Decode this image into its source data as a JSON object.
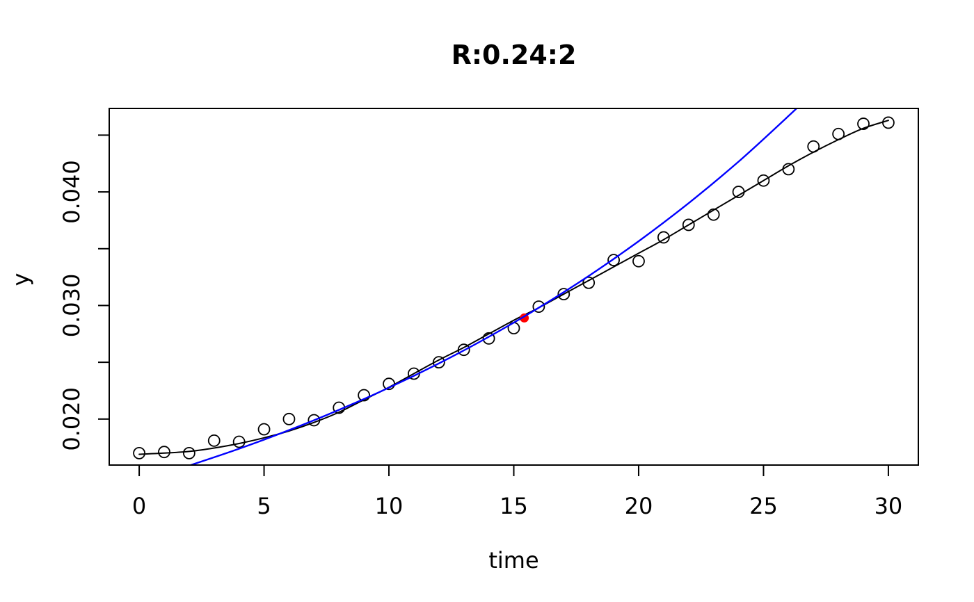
{
  "figure": {
    "title": "R:0.24:2",
    "x_axis_label": "time",
    "y_axis_label": "y"
  },
  "colors": {
    "background": "#FFFFFF",
    "foreground": "#000000",
    "fitted_curve": "#000000",
    "exponential_curve": "#0000FF",
    "highlight_point": "#FF0000"
  },
  "chart_data": {
    "type": "scatter",
    "title": "R:0.24:2",
    "xlabel": "time",
    "ylabel": "y",
    "xlim": [
      -1.2,
      31.2
    ],
    "ylim": [
      0.01595,
      0.04735
    ],
    "grid": false,
    "legend": "none",
    "x_ticks": {
      "values": [
        0,
        5,
        10,
        15,
        20,
        25,
        30
      ],
      "labels": [
        "0",
        "5",
        "10",
        "15",
        "20",
        "25",
        "30"
      ]
    },
    "y_ticks": {
      "values": [
        0.02,
        0.025,
        0.03,
        0.035,
        0.04,
        0.045
      ],
      "labels": [
        "0.020",
        "",
        "0.030",
        "",
        "0.040",
        ""
      ]
    },
    "series": [
      {
        "name": "observed-points",
        "type": "points",
        "marker": "open-circle",
        "color": "#000000",
        "x": [
          0,
          1,
          2,
          3,
          4,
          5,
          6,
          7,
          8,
          9,
          10,
          11,
          12,
          13,
          14,
          15,
          16,
          17,
          18,
          19,
          20,
          21,
          22,
          23,
          24,
          25,
          26,
          27,
          28,
          29,
          30
        ],
        "y": [
          0.017,
          0.0171,
          0.017,
          0.0181,
          0.018,
          0.0191,
          0.02,
          0.0199,
          0.021,
          0.0221,
          0.0231,
          0.024,
          0.025,
          0.0261,
          0.0271,
          0.028,
          0.0299,
          0.031,
          0.032,
          0.034,
          0.0339,
          0.036,
          0.0371,
          0.038,
          0.04,
          0.041,
          0.042,
          0.044,
          0.0451,
          0.046,
          0.0461
        ]
      },
      {
        "name": "fitted-curve",
        "type": "line",
        "color": "#000000",
        "width": 2,
        "x": [
          0,
          1,
          2,
          3,
          4,
          5,
          6,
          7,
          8,
          9,
          10,
          11,
          12,
          13,
          14,
          15,
          16,
          17,
          18,
          19,
          20,
          21,
          22,
          23,
          24,
          25,
          26,
          27,
          28,
          29,
          30
        ],
        "y": [
          0.0169,
          0.017,
          0.01715,
          0.01745,
          0.01785,
          0.01835,
          0.01895,
          0.0197,
          0.0206,
          0.0217,
          0.0228,
          0.024,
          0.0252,
          0.0263,
          0.0275,
          0.0287,
          0.0298,
          0.031,
          0.0322,
          0.0334,
          0.0346,
          0.0358,
          0.0371,
          0.0384,
          0.0397,
          0.041,
          0.0423,
          0.0435,
          0.0446,
          0.0456,
          0.0463
        ]
      },
      {
        "name": "highlight-point",
        "type": "points",
        "marker": "filled-circle",
        "color": "#FF0000",
        "x": [
          15.42
        ],
        "y": [
          0.0289
        ]
      },
      {
        "name": "exponential-curve",
        "type": "line",
        "color": "#0000FF",
        "width": 2.4,
        "x": [
          2.0,
          4,
          6,
          8,
          10,
          12,
          14,
          16,
          18,
          20,
          22,
          24,
          26,
          26.5
        ],
        "y": [
          0.0159,
          0.01739,
          0.01902,
          0.02081,
          0.02276,
          0.0249,
          0.02724,
          0.0298,
          0.0326,
          0.03566,
          0.03901,
          0.04267,
          0.04668,
          0.04775
        ]
      }
    ]
  }
}
